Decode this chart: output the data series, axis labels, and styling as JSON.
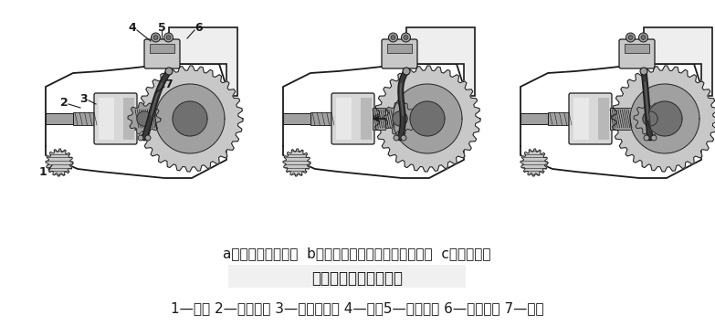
{
  "background_color": "#ffffff",
  "caption_line1": "a）起动机静止状态  b）驱动齿轮与飞轮齿圈正在嚌合  c）完全嚌合",
  "caption_title": "传动机构的工作示意图",
  "caption_line2": "1—飞轮 2—驱动齿轮 3—单向离合器 4—拨叄5—活动铁心 6—电磁开关 7—电枢",
  "caption_fontsize": 11,
  "title_fontsize": 12,
  "label_fontsize": 9,
  "fig_width": 7.83,
  "fig_height": 3.68,
  "dpi": 100
}
